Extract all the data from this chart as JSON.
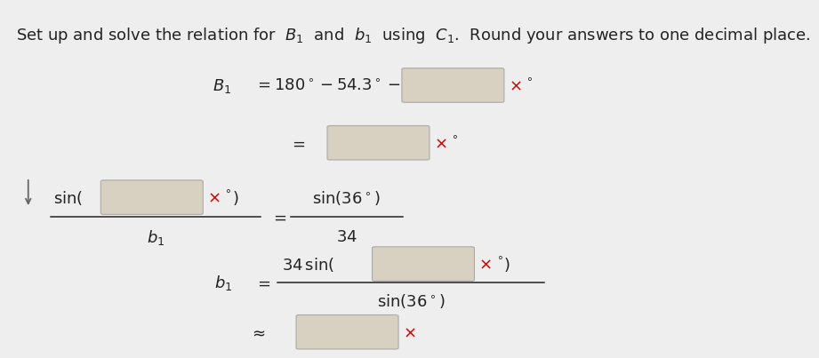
{
  "bg_color": "#eeeeee",
  "box_facecolor": "#d8d0c0",
  "box_edgecolor": "#aaaaaa",
  "x_color": "#cc0000",
  "math_color": "#222222",
  "title_fontsize": 13.0,
  "math_fontsize": 13.0,
  "title": "Set up and solve the relation for  $B_1$  and  $b_1$  using  $C_1$.  Round your answers to one decimal place."
}
